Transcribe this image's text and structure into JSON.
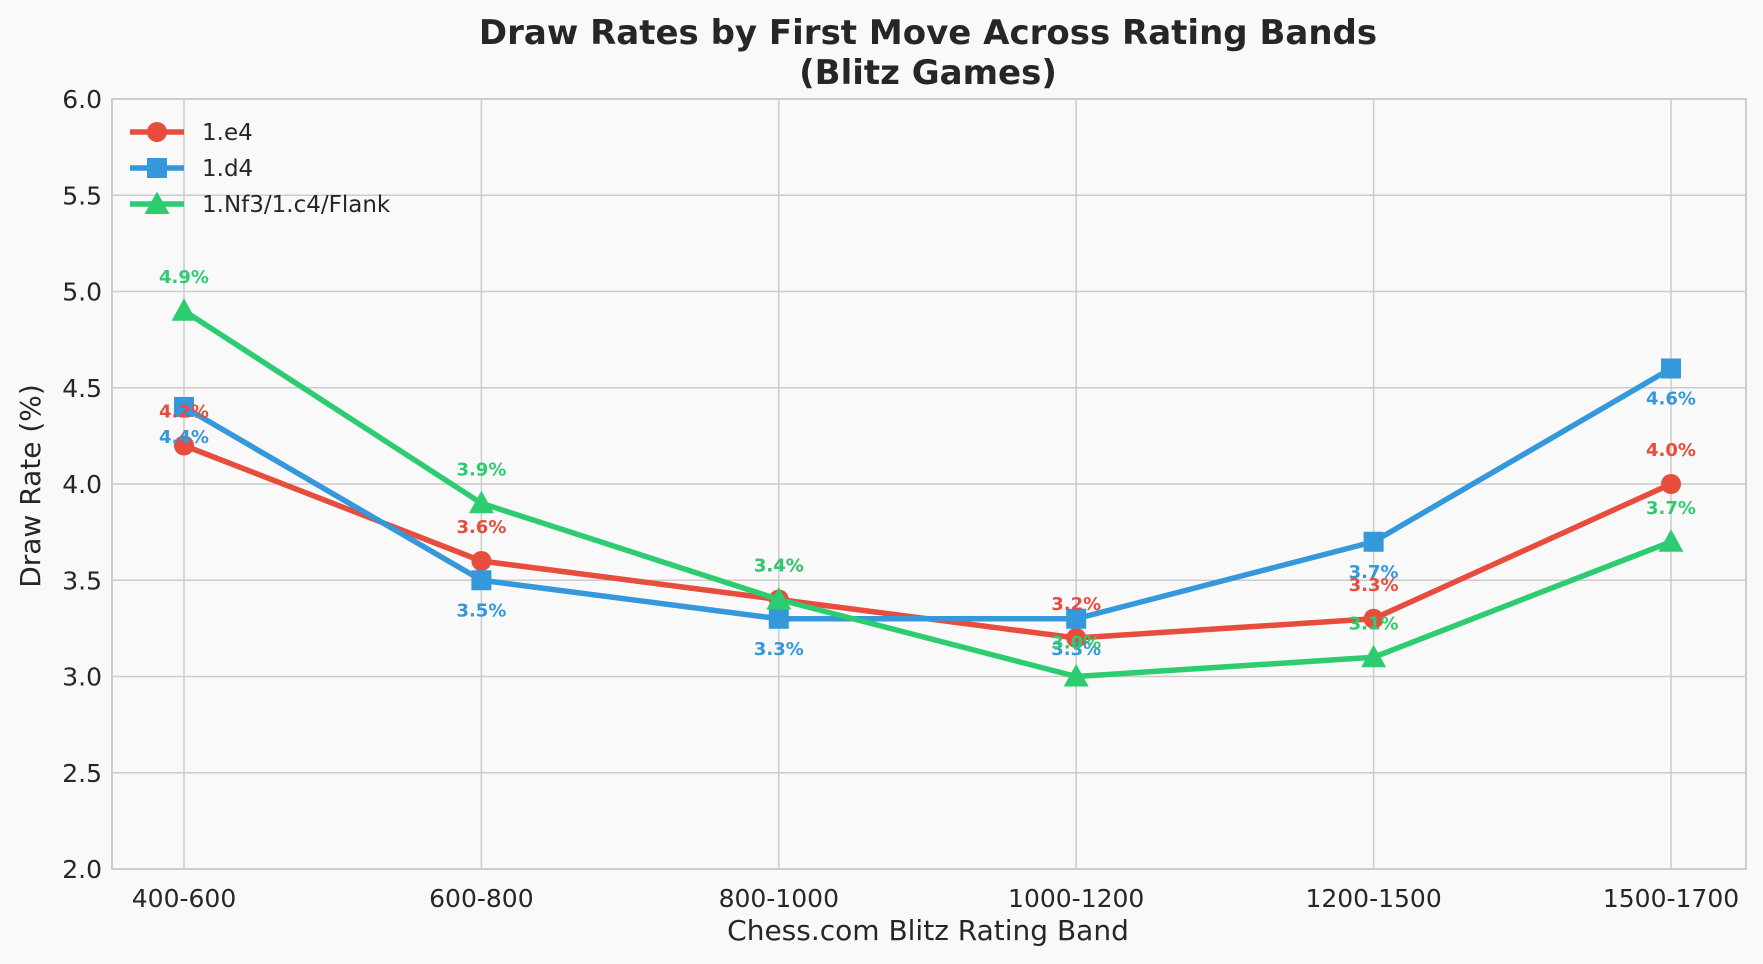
{
  "chart_data": {
    "type": "line",
    "title": "Draw Rates by First Move Across Rating Bands",
    "subtitle": "(Blitz Games)",
    "xlabel": "Chess.com Blitz Rating Band",
    "ylabel": "Draw Rate (%)",
    "categories": [
      "400-600",
      "600-800",
      "800-1000",
      "1000-1200",
      "1200-1500",
      "1500-1700"
    ],
    "ylim": [
      2.0,
      6.0
    ],
    "yticks": [
      "2.0",
      "2.5",
      "3.0",
      "3.5",
      "4.0",
      "4.5",
      "5.0",
      "5.5",
      "6.0"
    ],
    "grid": true,
    "legend_position": "top-left",
    "series": [
      {
        "name": "1.e4",
        "color": "#e74c3c",
        "marker": "circle",
        "values": [
          4.2,
          3.6,
          3.4,
          3.2,
          3.3,
          4.0
        ],
        "labels": [
          "4.2%",
          "3.6%",
          "3.4%",
          "3.2%",
          "3.3%",
          "4.0%"
        ]
      },
      {
        "name": "1.d4",
        "color": "#3498db",
        "marker": "square",
        "values": [
          4.4,
          3.5,
          3.3,
          3.3,
          3.7,
          4.6
        ],
        "labels": [
          "4.4%",
          "3.5%",
          "3.3%",
          "3.3%",
          "3.7%",
          "4.6%"
        ]
      },
      {
        "name": "1.Nf3/1.c4/Flank",
        "color": "#2ecc71",
        "marker": "triangle",
        "values": [
          4.9,
          3.9,
          3.4,
          3.0,
          3.1,
          3.7
        ],
        "labels": [
          "4.9%",
          "3.9%",
          "3.4%",
          "3.0%",
          "3.1%",
          "3.7%"
        ]
      }
    ]
  }
}
